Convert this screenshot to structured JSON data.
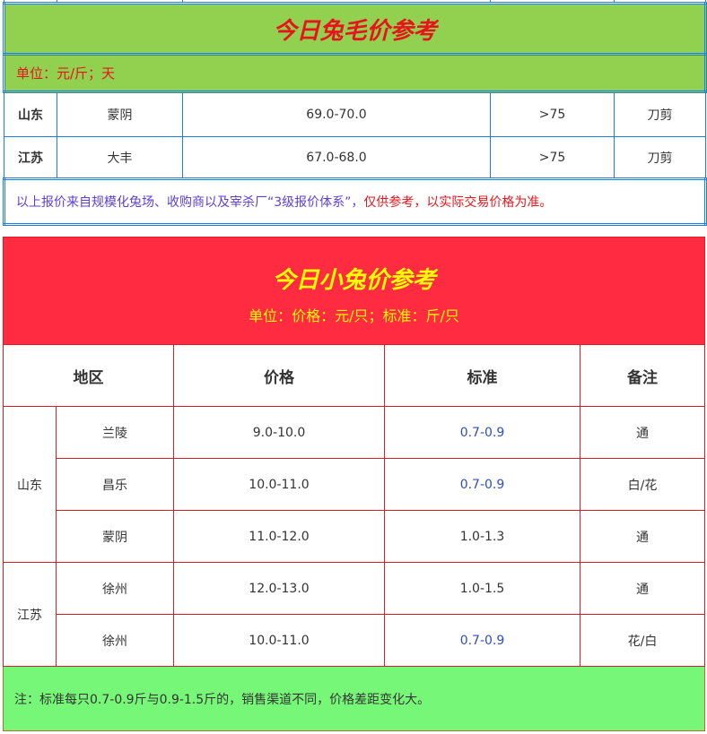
{
  "wool": {
    "title": "今日兔毛价参考",
    "unit": "单位：元/斤；天",
    "rows": [
      {
        "province": "山东",
        "city": "蒙阴",
        "price": "69.0-70.0",
        "length": ">75",
        "method": "刀剪"
      },
      {
        "province": "江苏",
        "city": "大丰",
        "price": "67.0-68.0",
        "length": ">75",
        "method": "刀剪"
      }
    ],
    "note_source": "以上报价来自规模化兔场、收购商以及宰杀厂“3级报价体系”，",
    "note_disclaimer": "仅供参考，以实际交易价格为准。",
    "colors": {
      "header_bg": "#92d050",
      "title": "#e8141c",
      "border": "#1a7fe0",
      "note_source": "#5b3fd6"
    }
  },
  "kits": {
    "title": "今日小兔价参考",
    "unit": "单位：价格：元/只；标准：斤/只",
    "headers": [
      "地区",
      "价格",
      "标准",
      "备注"
    ],
    "groups": [
      {
        "province": "山东",
        "rows": [
          {
            "city": "兰陵",
            "price": "9.0-10.0",
            "standard": "0.7-0.9",
            "remark": "通"
          },
          {
            "city": "昌乐",
            "price": "10.0-11.0",
            "standard": "0.7-0.9",
            "remark": "白/花"
          },
          {
            "city": "蒙阴",
            "price": "11.0-12.0",
            "standard": "1.0-1.3",
            "remark": "通"
          }
        ]
      },
      {
        "province": "江苏",
        "rows": [
          {
            "city": "徐州",
            "price": "12.0-13.0",
            "standard": "1.0-1.5",
            "remark": "通"
          },
          {
            "city": "徐州",
            "price": "10.0-11.0",
            "standard": "0.7-0.9",
            "remark": "花/白"
          }
        ]
      }
    ],
    "footnote": "注：标准每只0.7-0.9斤与0.9-1.5斤的，销售渠道不同，价格差距变化大。",
    "colors": {
      "header_bg": "#ff2b40",
      "title": "#ffff00",
      "border": "#d81e28",
      "footer_bg": "#77f777",
      "standard_highlight": "#2f4ec2"
    }
  }
}
